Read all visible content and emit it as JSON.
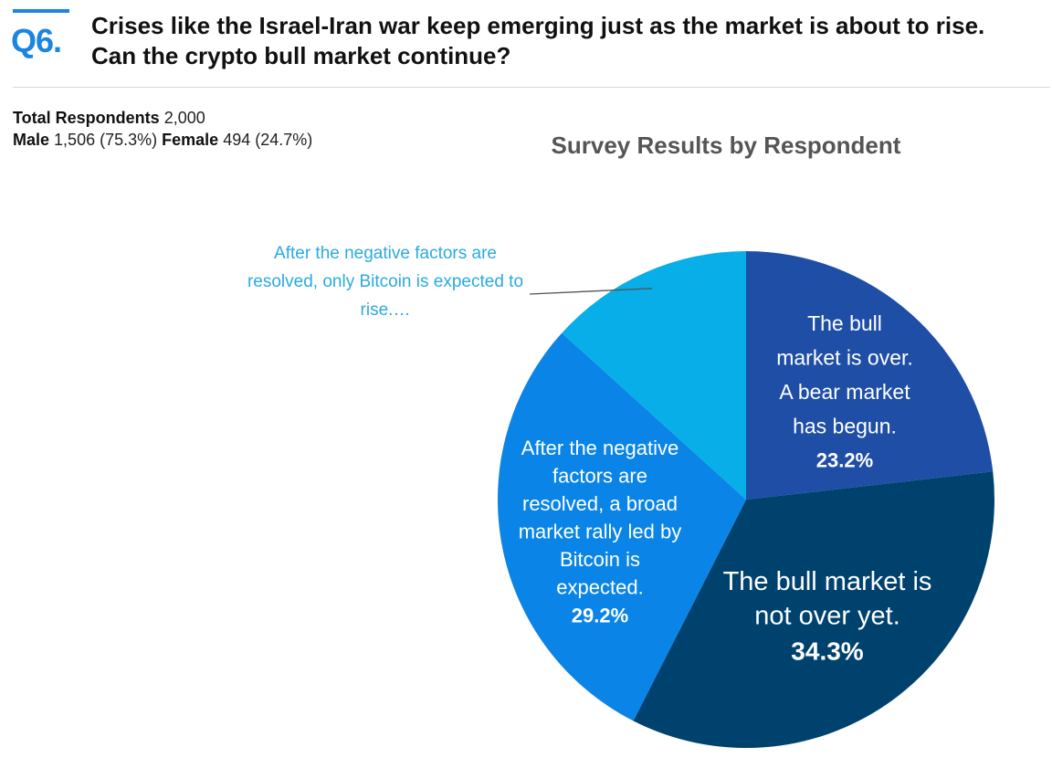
{
  "header": {
    "question_number": "Q6.",
    "question_line1": "Crises like the Israel-Iran war keep emerging just as the market is about to rise.",
    "question_line2": "Can the crypto bull market continue?"
  },
  "respondents": {
    "total_label": "Total Respondents",
    "total_value": "2,000",
    "male_label": "Male",
    "male_value": "1,506 (75.3%)",
    "female_label": "Female",
    "female_value": "494 (24.7%)"
  },
  "colors": {
    "accent": "#1a86e0",
    "slice_bear": "#1e4ea6",
    "slice_not_over": "#00426e",
    "slice_broad_rally": "#0a84e6",
    "slice_bitcoin_only": "#08aee8",
    "callout_text": "#2aaae0"
  },
  "chart_data": {
    "type": "pie",
    "title": "Survey Results by Respondent",
    "start_angle_deg": 0,
    "direction": "clockwise",
    "slices": [
      {
        "label_lines": [
          "The bull",
          "market is over.",
          "A bear market",
          "has begun."
        ],
        "value": 23.2,
        "value_label": "23.2%",
        "color": "#1e4ea6",
        "label_position": "inside"
      },
      {
        "label_lines": [
          "The bull market is",
          "not over yet."
        ],
        "value": 34.3,
        "value_label": "34.3%",
        "color": "#00426e",
        "label_position": "inside"
      },
      {
        "label_lines": [
          "After the negative",
          "factors are",
          "resolved, a broad",
          "market rally led by",
          "Bitcoin is",
          "expected."
        ],
        "value": 29.2,
        "value_label": "29.2%",
        "color": "#0a84e6",
        "label_position": "inside"
      },
      {
        "label_lines": [
          "After the negative factors are",
          "resolved, only Bitcoin is expected to",
          "rise.…"
        ],
        "value": 13.3,
        "value_label": "",
        "color": "#08aee8",
        "label_position": "outside-callout"
      }
    ]
  }
}
